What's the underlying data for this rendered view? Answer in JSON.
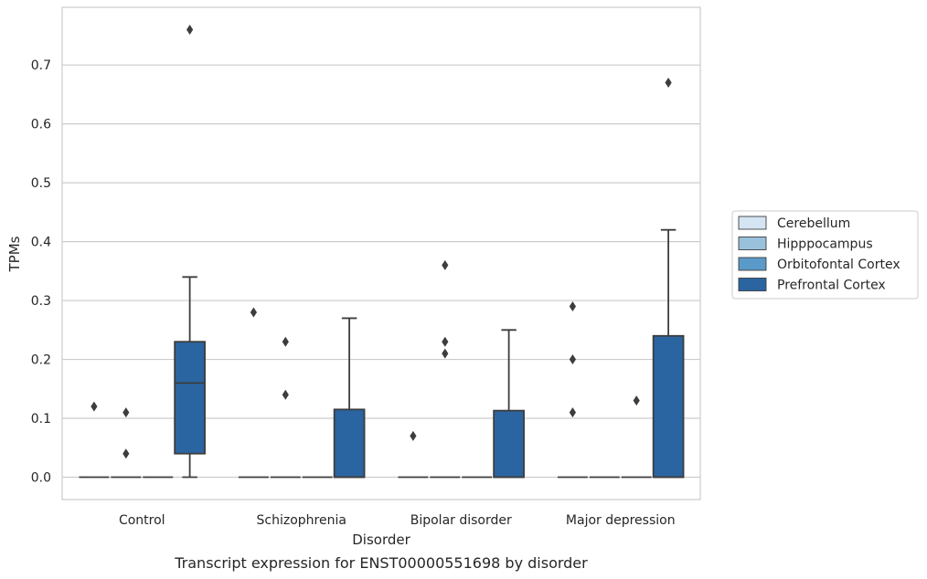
{
  "chart_data": {
    "type": "boxplot",
    "caption": "Transcript expression for ENST00000551698 by disorder",
    "xlabel": "Disorder",
    "ylabel": "TPMs",
    "ylim": [
      -0.038,
      0.798
    ],
    "yticks": [
      0.0,
      0.1,
      0.2,
      0.3,
      0.4,
      0.5,
      0.6,
      0.7
    ],
    "ytick_labels": [
      "0.0",
      "0.1",
      "0.2",
      "0.3",
      "0.4",
      "0.5",
      "0.6",
      "0.7"
    ],
    "grid": true,
    "legend_position": "right-center",
    "categories": [
      "Control",
      "Schizophrenia",
      "Bipolar disorder",
      "Major depression"
    ],
    "series": [
      {
        "name": "Cerebellum",
        "color": "#d4e4f3",
        "boxes": [
          {
            "q1": 0,
            "median": 0,
            "q3": 0,
            "whisker_low": 0,
            "whisker_high": 0,
            "outliers": [
              0.12
            ]
          },
          {
            "q1": 0,
            "median": 0,
            "q3": 0,
            "whisker_low": 0,
            "whisker_high": 0,
            "outliers": [
              0.28
            ]
          },
          {
            "q1": 0,
            "median": 0,
            "q3": 0,
            "whisker_low": 0,
            "whisker_high": 0,
            "outliers": [
              0.07
            ]
          },
          {
            "q1": 0,
            "median": 0,
            "q3": 0,
            "whisker_low": 0,
            "whisker_high": 0,
            "outliers": [
              0.29,
              0.2,
              0.11
            ]
          }
        ]
      },
      {
        "name": "Hipppocampus",
        "color": "#9ac1dc",
        "boxes": [
          {
            "q1": 0,
            "median": 0,
            "q3": 0,
            "whisker_low": 0,
            "whisker_high": 0,
            "outliers": [
              0.04,
              0.11
            ]
          },
          {
            "q1": 0,
            "median": 0,
            "q3": 0,
            "whisker_low": 0,
            "whisker_high": 0,
            "outliers": [
              0.23,
              0.14
            ]
          },
          {
            "q1": 0,
            "median": 0,
            "q3": 0,
            "whisker_low": 0,
            "whisker_high": 0,
            "outliers": [
              0.36,
              0.23,
              0.21
            ]
          },
          {
            "q1": 0,
            "median": 0,
            "q3": 0,
            "whisker_low": 0,
            "whisker_high": 0,
            "outliers": []
          }
        ]
      },
      {
        "name": "Orbitofontal Cortex",
        "color": "#5a9ac9",
        "boxes": [
          {
            "q1": 0,
            "median": 0,
            "q3": 0,
            "whisker_low": 0,
            "whisker_high": 0,
            "outliers": []
          },
          {
            "q1": 0,
            "median": 0,
            "q3": 0,
            "whisker_low": 0,
            "whisker_high": 0,
            "outliers": []
          },
          {
            "q1": 0,
            "median": 0,
            "q3": 0,
            "whisker_low": 0,
            "whisker_high": 0,
            "outliers": []
          },
          {
            "q1": 0,
            "median": 0,
            "q3": 0,
            "whisker_low": 0,
            "whisker_high": 0,
            "outliers": [
              0.13
            ]
          }
        ]
      },
      {
        "name": "Prefrontal Cortex",
        "color": "#2a65a1",
        "boxes": [
          {
            "q1": 0.04,
            "median": 0.16,
            "q3": 0.23,
            "whisker_low": 0,
            "whisker_high": 0.34,
            "outliers": [
              0.76
            ]
          },
          {
            "q1": 0,
            "median": 0,
            "q3": 0.115,
            "whisker_low": 0,
            "whisker_high": 0.27,
            "outliers": []
          },
          {
            "q1": 0,
            "median": 0,
            "q3": 0.113,
            "whisker_low": 0,
            "whisker_high": 0.25,
            "outliers": []
          },
          {
            "q1": 0,
            "median": 0,
            "q3": 0.24,
            "whisker_low": 0,
            "whisker_high": 0.42,
            "outliers": [
              0.67
            ]
          }
        ]
      }
    ]
  }
}
